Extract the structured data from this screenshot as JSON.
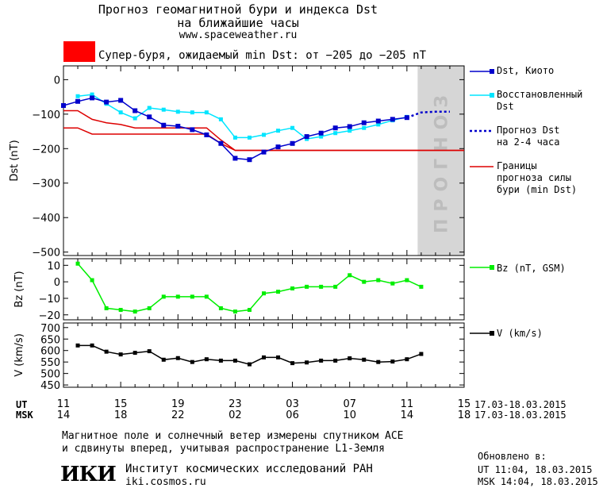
{
  "header": {
    "title_line1": "Прогноз геомагнитной бури и индекса Dst",
    "title_line2": "на ближайшие часы",
    "url": "www.spaceweather.ru",
    "storm_text": "Супер-буря, ожидаемый min Dst: от −205 до −205 nT",
    "storm_color": "#ff0000"
  },
  "legend": {
    "dst_kyoto": "Dst, Киото",
    "restored_1": "Восстановленный",
    "restored_2": "Dst",
    "forecast_1": "Прогноз Dst",
    "forecast_2": "на 2-4 часа",
    "bounds_1": "Границы",
    "bounds_2": "прогноза силы",
    "bounds_3": "бури (min Dst)",
    "bz": "Bz (nT, GSM)",
    "v": "V (km/s)"
  },
  "forecast_label": "ПРОГНОЗ",
  "time_axis": {
    "ut_label": "UT",
    "msk_label": "MSK",
    "ut_ticks": [
      "11",
      "15",
      "19",
      "23",
      "03",
      "07",
      "11",
      "15"
    ],
    "msk_ticks": [
      "14",
      "18",
      "22",
      "02",
      "06",
      "10",
      "14",
      "18"
    ],
    "date_range": "17.03-18.03.2015"
  },
  "footer": {
    "note_1": "Магнитное поле и солнечный ветер измерены спутником ACE",
    "note_2": "и сдвинуты вперед, учитывая распространение L1-Земля",
    "logo": "ИКИ",
    "institute": "Институт космических исследований РАН",
    "site": "iki.cosmos.ru",
    "updated_label": "Обновлено в:",
    "updated_ut": "UT  11:04, 18.03.2015",
    "updated_msk": "MSK 14:04, 18.03.2015"
  },
  "colors": {
    "dst": "#0000cc",
    "restored": "#00e5ff",
    "forecast": "#0000cc",
    "bounds": "#dd0000",
    "bz": "#00ee00",
    "v": "#000000",
    "forecast_shade": "#d6d6d6"
  },
  "chart_data": [
    {
      "type": "line",
      "ylabel": "Dst (nT)",
      "xlim": [
        0,
        28
      ],
      "ylim": [
        -510,
        40
      ],
      "yticks": [
        0,
        -100,
        -200,
        -300,
        -400,
        -500
      ],
      "forecast_region": [
        24.75,
        28
      ],
      "series": [
        {
          "name": "Dst, Киото",
          "x": [
            0,
            1,
            2,
            3,
            4,
            5,
            6,
            7,
            8,
            9,
            10,
            11,
            12,
            13,
            14,
            15,
            16,
            17,
            18,
            19,
            20,
            21,
            22,
            23,
            24
          ],
          "y": [
            -75,
            -63,
            -53,
            -65,
            -60,
            -90,
            -108,
            -132,
            -135,
            -145,
            -160,
            -185,
            -228,
            -232,
            -210,
            -195,
            -185,
            -165,
            -155,
            -140,
            -136,
            -125,
            -120,
            -115,
            -110
          ]
        },
        {
          "name": "Восстановленный Dst",
          "x": [
            1,
            2,
            3,
            4,
            5,
            6,
            7,
            8,
            9,
            10,
            11,
            12,
            13,
            14,
            15,
            16,
            17,
            18,
            19,
            20,
            21,
            22,
            23,
            24
          ],
          "y": [
            -48,
            -43,
            -70,
            -95,
            -112,
            -82,
            -87,
            -93,
            -95,
            -95,
            -115,
            -168,
            -168,
            -160,
            -148,
            -140,
            -172,
            -165,
            -155,
            -148,
            -140,
            -130,
            -118,
            -108
          ]
        },
        {
          "name": "Прогноз Dst на 2-4 часа",
          "x": [
            24,
            25,
            26,
            27
          ],
          "y": [
            -110,
            -95,
            -93,
            -93
          ]
        },
        {
          "name": "Границы прогноза силы бури (min Dst)",
          "x": [
            0,
            1,
            2,
            3,
            4,
            5,
            6,
            7,
            8,
            9,
            10,
            11,
            12,
            13,
            14,
            15,
            16,
            17,
            18,
            19,
            20,
            21,
            22,
            23,
            24,
            25,
            26,
            27,
            28
          ],
          "y": [
            -90,
            -90,
            -115,
            -125,
            -130,
            -140,
            -140,
            -140,
            -140,
            -140,
            -140,
            -175,
            -205,
            -205,
            -205,
            -205,
            -205,
            -205,
            -205,
            -205,
            -205,
            -205,
            -205,
            -205,
            -205,
            -205,
            -205,
            -205,
            -205
          ]
        },
        {
          "name": "Границы прогноза силы бури (min Dst)",
          "x": [
            0,
            1,
            2,
            3,
            4,
            5,
            6,
            7,
            8,
            9,
            10,
            11,
            12,
            13,
            14,
            15,
            16,
            17,
            18,
            19,
            20,
            21,
            22,
            23,
            24,
            25,
            26,
            27,
            28
          ],
          "y": [
            -140,
            -140,
            -158,
            -158,
            -158,
            -158,
            -158,
            -158,
            -158,
            -158,
            -158,
            -185,
            -205,
            -205,
            -205,
            -205,
            -205,
            -205,
            -205,
            -205,
            -205,
            -205,
            -205,
            -205,
            -205,
            -205,
            -205,
            -205,
            -205
          ]
        }
      ]
    },
    {
      "type": "line",
      "ylabel": "Bz (nT)",
      "xlim": [
        0,
        28
      ],
      "ylim": [
        -23,
        14
      ],
      "yticks": [
        10,
        0,
        -10,
        -20
      ],
      "series": [
        {
          "name": "Bz (nT, GSM)",
          "x": [
            1,
            2,
            3,
            4,
            5,
            6,
            7,
            8,
            9,
            10,
            11,
            12,
            13,
            14,
            15,
            16,
            17,
            18,
            19,
            20,
            21,
            22,
            23,
            24,
            25
          ],
          "y": [
            11,
            1,
            -16,
            -17,
            -18,
            -16,
            -9,
            -9,
            -9,
            -9,
            -16,
            -18,
            -17,
            -7,
            -6,
            -4,
            -3,
            -3,
            -3,
            4,
            0,
            1,
            -1,
            1,
            -3
          ]
        }
      ]
    },
    {
      "type": "line",
      "ylabel": "V (km/s)",
      "xlim": [
        0,
        28
      ],
      "ylim": [
        440,
        720
      ],
      "yticks": [
        700,
        650,
        600,
        550,
        500,
        450
      ],
      "series": [
        {
          "name": "V (km/s)",
          "x": [
            1,
            2,
            3,
            4,
            5,
            6,
            7,
            8,
            9,
            10,
            11,
            12,
            13,
            14,
            15,
            16,
            17,
            18,
            19,
            20,
            21,
            22,
            23,
            24,
            25
          ],
          "y": [
            622,
            622,
            595,
            583,
            590,
            597,
            560,
            567,
            550,
            562,
            556,
            556,
            540,
            570,
            570,
            545,
            548,
            556,
            556,
            566,
            560,
            550,
            552,
            562,
            585
          ]
        }
      ]
    }
  ]
}
